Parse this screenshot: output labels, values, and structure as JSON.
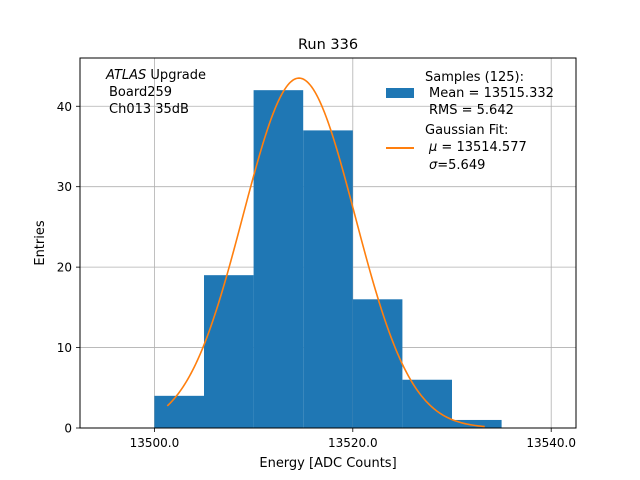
{
  "chart_data": {
    "type": "bar",
    "title": "Run 336",
    "xlabel": "Energy [ADC Counts]",
    "ylabel": "Entries",
    "xlim": [
      13492.5,
      13542.5
    ],
    "ylim": [
      0,
      46
    ],
    "grid": true,
    "x_ticks": [
      13500.0,
      13520.0,
      13540.0
    ],
    "x_tick_labels": [
      "13500.0",
      "13520.0",
      "13540.0"
    ],
    "y_ticks": [
      0,
      10,
      20,
      30,
      40
    ],
    "y_tick_labels": [
      "0",
      "10",
      "20",
      "30",
      "40"
    ],
    "bin_edges": [
      13500,
      13505,
      13510,
      13515,
      13520,
      13525,
      13530,
      13535
    ],
    "values": [
      4,
      19,
      42,
      37,
      16,
      6,
      1
    ],
    "fit": {
      "mu": 13514.577,
      "sigma": 5.649,
      "amplitude": 43.5,
      "x_range": [
        13501.3,
        13533.3
      ]
    },
    "colors": {
      "histogram": "#1f77b4",
      "fit": "#ff7f0e"
    },
    "annotation": {
      "atlas": "ATLAS",
      "upgrade": "Upgrade",
      "line2": "Board259",
      "line3": "Ch013 35dB"
    },
    "legend": {
      "position": "upper right",
      "samples_line1": "Samples (125):",
      "samples_line2": "Mean = 13515.332",
      "samples_line3": "RMS = 5.642",
      "fit_line1": "Gaussian Fit:",
      "fit_mu_symbol": "μ",
      "fit_mu_text": "= 13514.577",
      "fit_sigma_symbol": "σ",
      "fit_sigma_text": "=5.649"
    }
  }
}
